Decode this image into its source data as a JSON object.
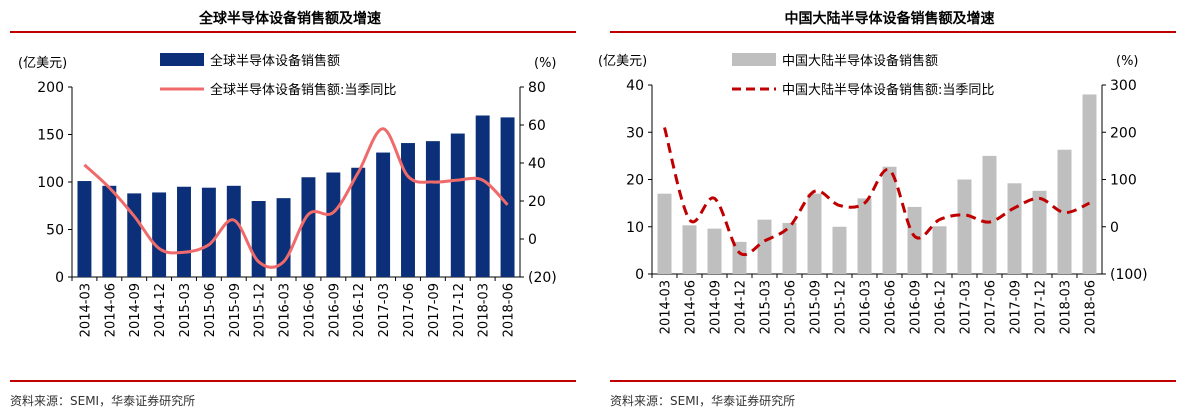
{
  "panels": [
    {
      "title": "全球半导体设备销售额及增速",
      "source": "资料来源：SEMI，华泰证券研究所"
    },
    {
      "title": "中国大陆半导体设备销售额及增速",
      "source": "资料来源：SEMI，华泰证券研究所"
    }
  ],
  "chart_data": [
    {
      "type": "bar",
      "categories": [
        "2014-03",
        "2014-06",
        "2014-09",
        "2014-12",
        "2015-03",
        "2015-06",
        "2015-09",
        "2015-12",
        "2016-03",
        "2016-06",
        "2016-09",
        "2016-12",
        "2017-03",
        "2017-06",
        "2017-09",
        "2017-12",
        "2018-03",
        "2018-06"
      ],
      "left_unit": "(亿美元)",
      "right_unit": "(%)",
      "left_ticks": [
        "0",
        "50",
        "100",
        "150",
        "200"
      ],
      "right_ticks": [
        "(20)",
        "0",
        "20",
        "40",
        "60",
        "80"
      ],
      "ylim": [
        0,
        200
      ],
      "y2lim": [
        -20,
        80
      ],
      "grid": false,
      "legend_position": "top-center",
      "bar_color": "#0b2f78",
      "line_color": "#ef6b6b",
      "line_style": "solid",
      "series": [
        {
          "name": "全球半导体设备销售额",
          "kind": "bar",
          "axis": "left",
          "values": [
            101,
            96,
            88,
            89,
            95,
            94,
            96,
            80,
            83,
            105,
            110,
            115,
            131,
            141,
            143,
            151,
            170,
            168
          ]
        },
        {
          "name": "全球半导体设备销售额:当季同比",
          "kind": "line",
          "axis": "right",
          "values": [
            39,
            27,
            12,
            -5,
            -7,
            -3,
            10,
            -12,
            -12,
            13,
            14,
            35,
            58,
            33,
            30,
            31,
            31,
            18
          ]
        }
      ]
    },
    {
      "type": "bar",
      "categories": [
        "2014-03",
        "2014-06",
        "2014-09",
        "2014-12",
        "2015-03",
        "2015-06",
        "2015-09",
        "2015-12",
        "2016-03",
        "2016-06",
        "2016-09",
        "2016-12",
        "2017-03",
        "2017-06",
        "2017-09",
        "2017-12",
        "2018-03",
        "2018-06"
      ],
      "left_unit": "(亿美元)",
      "right_unit": "(%)",
      "left_ticks": [
        "0",
        "10",
        "20",
        "30",
        "40"
      ],
      "right_ticks": [
        "(100)",
        "0",
        "100",
        "200",
        "300"
      ],
      "ylim": [
        0,
        40
      ],
      "y2lim": [
        -100,
        300
      ],
      "grid": false,
      "legend_position": "top-center",
      "bar_color": "#bfbfbf",
      "line_color": "#c00000",
      "line_style": "dashed",
      "series": [
        {
          "name": "中国大陆半导体设备销售额",
          "kind": "bar",
          "axis": "left",
          "values": [
            17,
            10.3,
            9.6,
            6.8,
            11.5,
            10.8,
            17,
            10,
            16,
            22.7,
            14.2,
            10.1,
            20,
            25,
            19.2,
            17.6,
            26.3,
            38
          ]
        },
        {
          "name": "中国大陆半导体设备销售额:当季同比",
          "kind": "line",
          "axis": "right",
          "values": [
            210,
            15,
            60,
            -55,
            -30,
            0,
            75,
            45,
            50,
            120,
            -20,
            15,
            25,
            10,
            40,
            60,
            30,
            50
          ]
        }
      ]
    }
  ]
}
